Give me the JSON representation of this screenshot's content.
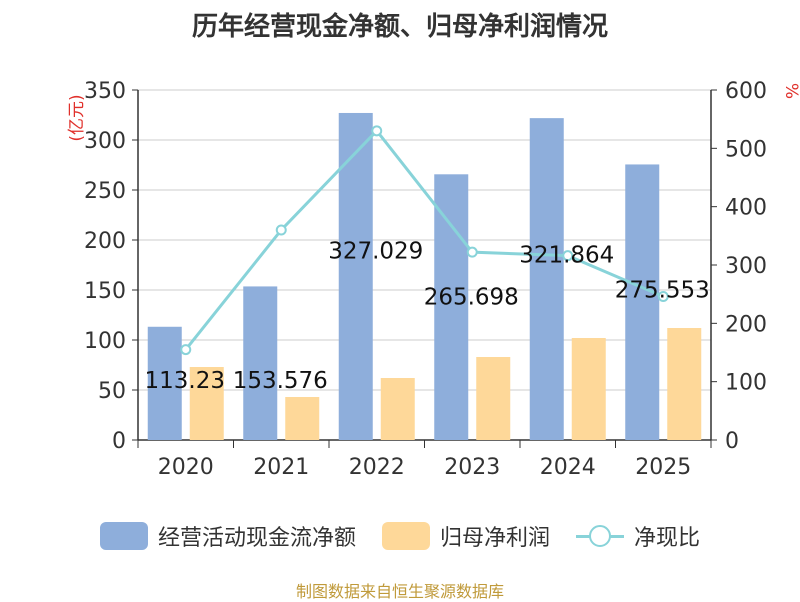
{
  "chart_data": {
    "type": "bar+line",
    "title": "历年经营现金净额、归母净利润情况",
    "categories": [
      "2020",
      "2021",
      "2022",
      "2023",
      "2024",
      "2025"
    ],
    "series": [
      {
        "name": "经营活动现金流净额",
        "type": "bar",
        "axis": "left",
        "values": [
          113.23,
          153.576,
          327.029,
          265.698,
          321.864,
          275.553
        ]
      },
      {
        "name": "归母净利润",
        "type": "bar",
        "axis": "left",
        "values": [
          73,
          43,
          62,
          83,
          102,
          112
        ]
      },
      {
        "name": "净现比",
        "type": "line",
        "axis": "right",
        "values": [
          155,
          360,
          530,
          322,
          316,
          246
        ]
      }
    ],
    "data_labels": [
      "113.23",
      "153.576",
      "327.029",
      "265.698",
      "321.864",
      "275.553"
    ],
    "ylabel_left": "(亿元)",
    "ylabel_right": "%",
    "ylim_left": [
      0,
      350
    ],
    "ylim_right": [
      0,
      600
    ],
    "yticks_left": [
      "0",
      "50",
      "100",
      "150",
      "200",
      "250",
      "300",
      "350"
    ],
    "yticks_right": [
      "0",
      "100",
      "200",
      "300",
      "400",
      "500",
      "600"
    ],
    "grid": true,
    "legend_position": "bottom",
    "colors": {
      "bar1": "#8eaedb",
      "bar2": "#fed899",
      "line": "#88d3d9",
      "axis_label": "#e0302b"
    }
  },
  "legend": {
    "items": [
      {
        "label": "经营活动现金流净额"
      },
      {
        "label": "归母净利润"
      },
      {
        "label": "净现比"
      }
    ]
  },
  "source_text": "制图数据来自恒生聚源数据库"
}
